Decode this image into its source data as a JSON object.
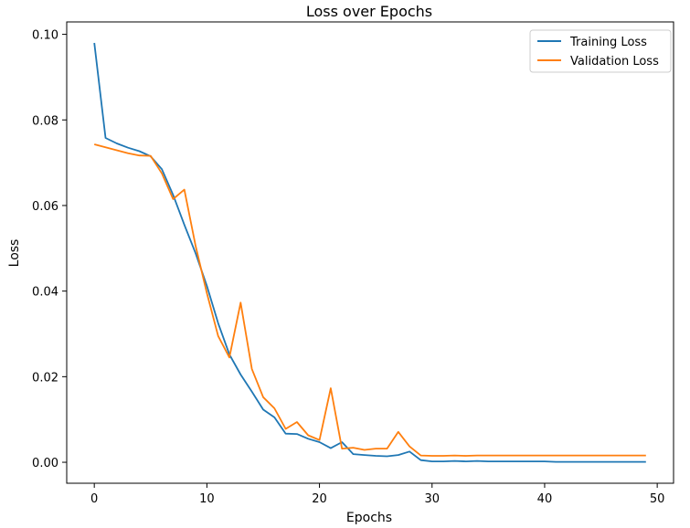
{
  "chart_data": {
    "type": "line",
    "title": "Loss over Epochs",
    "xlabel": "Epochs",
    "ylabel": "Loss",
    "xlim": [
      -2.45,
      51.45
    ],
    "ylim": [
      -0.0049,
      0.1029
    ],
    "xticks": [
      0,
      10,
      20,
      30,
      40,
      50
    ],
    "xtick_labels": [
      "0",
      "10",
      "20",
      "30",
      "40",
      "50"
    ],
    "yticks": [
      0.0,
      0.02,
      0.04,
      0.06,
      0.08,
      0.1
    ],
    "ytick_labels": [
      "0.00",
      "0.02",
      "0.04",
      "0.06",
      "0.08",
      "0.10"
    ],
    "grid": false,
    "legend_position": "top-right",
    "x": [
      0,
      1,
      2,
      3,
      4,
      5,
      6,
      7,
      8,
      9,
      10,
      11,
      12,
      13,
      14,
      15,
      16,
      17,
      18,
      19,
      20,
      21,
      22,
      23,
      24,
      25,
      26,
      27,
      28,
      29,
      30,
      31,
      32,
      33,
      34,
      35,
      36,
      37,
      38,
      39,
      40,
      41,
      42,
      43,
      44,
      45,
      46,
      47,
      48,
      49
    ],
    "series": [
      {
        "name": "Training Loss",
        "color": "#1f77b4",
        "values": [
          0.098,
          0.0758,
          0.0745,
          0.0735,
          0.0727,
          0.0715,
          0.0685,
          0.0625,
          0.0555,
          0.0488,
          0.0412,
          0.0325,
          0.0252,
          0.0205,
          0.0165,
          0.0123,
          0.0105,
          0.0067,
          0.0066,
          0.0055,
          0.0047,
          0.0033,
          0.0047,
          0.0019,
          0.0017,
          0.0015,
          0.0014,
          0.0017,
          0.0025,
          0.0005,
          0.0002,
          0.0002,
          0.0003,
          0.0002,
          0.0003,
          0.0002,
          0.0002,
          0.0002,
          0.0002,
          0.0002,
          0.0002,
          0.0001,
          0.0001,
          0.0001,
          0.0001,
          0.0001,
          0.0001,
          0.0001,
          0.0001,
          0.0001
        ]
      },
      {
        "name": "Validation Loss",
        "color": "#ff7f0e",
        "values": [
          0.0743,
          0.0736,
          0.0729,
          0.0722,
          0.0717,
          0.0716,
          0.0675,
          0.0615,
          0.0637,
          0.0505,
          0.0395,
          0.0295,
          0.0245,
          0.0373,
          0.0218,
          0.0152,
          0.0126,
          0.0078,
          0.0094,
          0.0063,
          0.0052,
          0.0173,
          0.0032,
          0.0034,
          0.0029,
          0.0032,
          0.0032,
          0.0071,
          0.0037,
          0.0016,
          0.0015,
          0.0015,
          0.0016,
          0.0015,
          0.0016,
          0.0016,
          0.0016,
          0.0016,
          0.0016,
          0.0016,
          0.0016,
          0.0016,
          0.0016,
          0.0016,
          0.0016,
          0.0016,
          0.0016,
          0.0016,
          0.0016,
          0.0016
        ]
      }
    ]
  }
}
